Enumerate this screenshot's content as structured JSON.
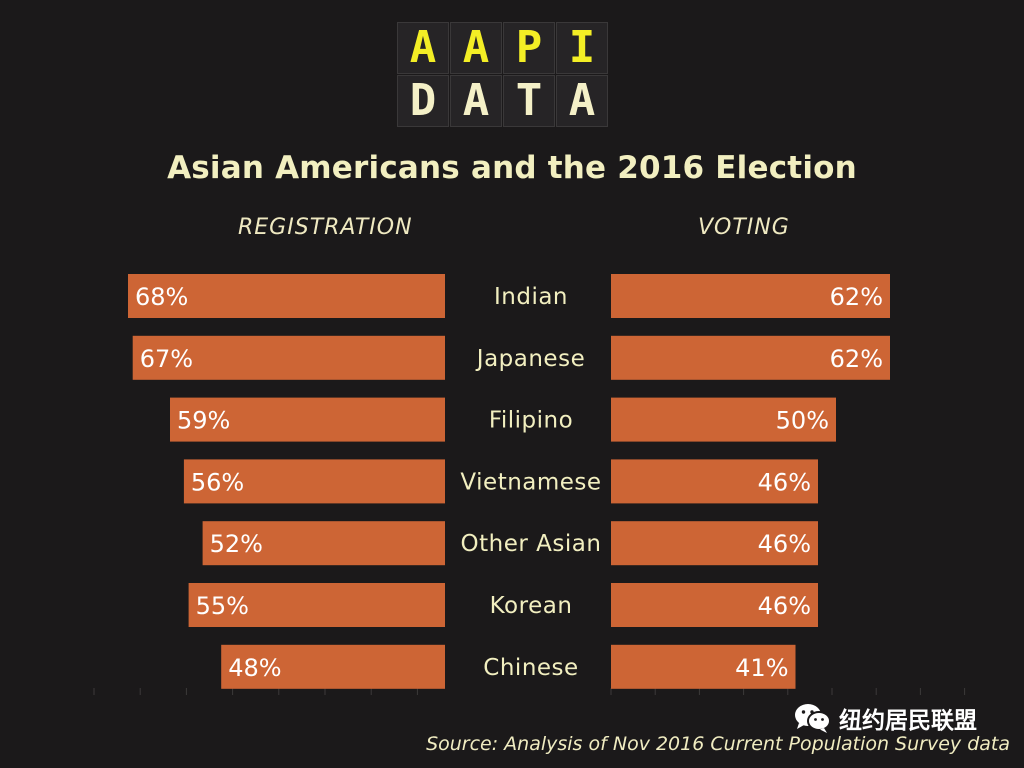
{
  "logo": {
    "row1": [
      "A",
      "A",
      "P",
      "I"
    ],
    "row2": [
      "D",
      "A",
      "T",
      "A"
    ]
  },
  "colors": {
    "background": "#1b191a",
    "bar": "#cd6535",
    "text": "#f2efc0",
    "logo_top": "#f3ee25"
  },
  "chart_data": {
    "type": "bar",
    "title": "Asian Americans and the 2016 Election",
    "categories": [
      "Indian",
      "Japanese",
      "Filipino",
      "Vietnamese",
      "Other Asian",
      "Korean",
      "Chinese"
    ],
    "series": [
      {
        "name": "REGISTRATION",
        "values": [
          68,
          67,
          59,
          56,
          52,
          55,
          48
        ]
      },
      {
        "name": "VOTING",
        "values": [
          62,
          62,
          50,
          46,
          46,
          46,
          41
        ]
      }
    ],
    "value_suffix": "%",
    "xlim": [
      0,
      70
    ],
    "grid": false
  },
  "source": "Source: Analysis of Nov 2016 Current Population Survey data",
  "watermark": "纽约居民联盟"
}
